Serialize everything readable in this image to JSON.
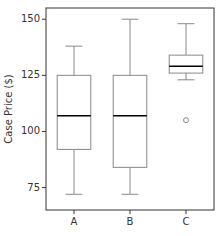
{
  "chart_data": {
    "type": "box",
    "ylabel": "Case Price ($)",
    "categories": [
      "A",
      "B",
      "C"
    ],
    "boxes": [
      {
        "low": 72,
        "q1": 92,
        "median": 107,
        "q3": 125,
        "high": 138,
        "fliers": []
      },
      {
        "low": 72,
        "q1": 84,
        "median": 107,
        "q3": 125,
        "high": 150,
        "fliers": []
      },
      {
        "low": 123,
        "q1": 126,
        "median": 129,
        "q3": 134,
        "high": 148,
        "fliers": [
          105
        ]
      }
    ],
    "ylim": [
      65,
      155
    ],
    "yticks": [
      75,
      100,
      125,
      150
    ],
    "color": "#888888",
    "grid": false
  }
}
